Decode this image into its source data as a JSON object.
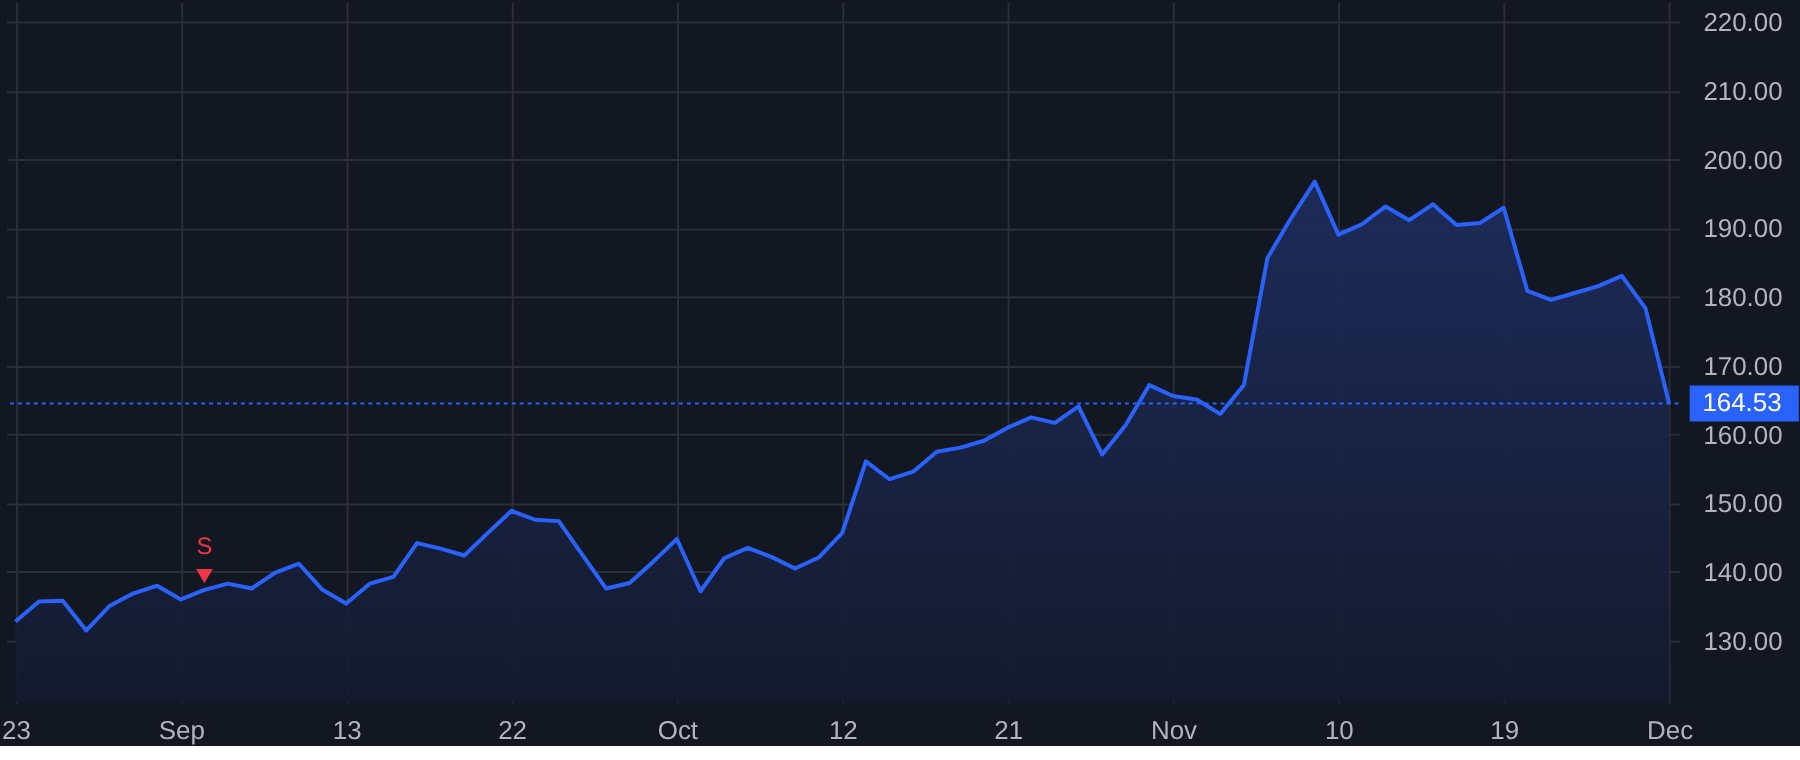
{
  "chart_data": {
    "type": "area",
    "categories": [
      "23",
      null,
      null,
      null,
      null,
      null,
      null,
      "Sep",
      null,
      null,
      null,
      null,
      null,
      null,
      "13",
      null,
      null,
      null,
      null,
      null,
      null,
      "22",
      null,
      null,
      null,
      null,
      null,
      null,
      "Oct",
      null,
      null,
      null,
      null,
      null,
      null,
      "12",
      null,
      null,
      null,
      null,
      null,
      null,
      "21",
      null,
      null,
      null,
      null,
      null,
      null,
      "Nov",
      null,
      null,
      null,
      null,
      null,
      null,
      "10",
      null,
      null,
      null,
      null,
      null,
      null,
      "19",
      null,
      null,
      null,
      null,
      null,
      null,
      "Dec"
    ],
    "series": [
      {
        "color": "#2962ff",
        "values": [
          132.8,
          135.7,
          135.8,
          131.5,
          135.1,
          136.9,
          138.0,
          136.0,
          137.4,
          138.3,
          137.6,
          139.9,
          141.2,
          137.4,
          135.4,
          138.3,
          139.3,
          144.2,
          143.4,
          142.4,
          145.7,
          148.9,
          147.6,
          147.4,
          142.5,
          137.6,
          138.4,
          141.5,
          144.8,
          137.2,
          142.0,
          143.5,
          142.2,
          140.5,
          142.1,
          145.7,
          156.1,
          153.5,
          154.6,
          157.5,
          158.1,
          159.1,
          161.0,
          162.5,
          161.7,
          164.1,
          157.1,
          161.4,
          167.2,
          165.6,
          165.1,
          163.0,
          167.2,
          185.7,
          191.5,
          196.8,
          189.1,
          190.6,
          193.2,
          191.2,
          193.5,
          190.5,
          190.8,
          193.0,
          180.9,
          179.6,
          180.6,
          181.6,
          183.1,
          178.4,
          164.53
        ]
      },
      {
        "name": "S",
        "type": "scatter",
        "marker": "triangle",
        "color": "#f23645",
        "values": [
          null,
          null,
          null,
          null,
          null,
          null,
          null,
          null,
          139.4,
          null,
          null,
          null,
          null,
          null,
          null,
          null,
          null,
          null,
          null,
          null,
          null,
          null,
          null,
          null,
          null,
          null,
          null,
          null,
          null,
          null,
          null,
          null,
          null,
          null,
          null,
          null,
          null,
          null,
          null,
          null,
          null,
          null,
          null,
          null,
          null,
          null,
          null,
          null,
          null,
          null,
          null,
          null,
          null,
          null,
          null,
          null,
          null,
          null,
          null,
          null,
          null,
          null,
          null,
          null,
          null,
          null,
          null,
          null,
          null,
          null,
          null
        ]
      }
    ],
    "ylim": [
      121,
      223
    ],
    "yticks": [
      {
        "value": 130,
        "label": "130.00"
      },
      {
        "value": 140,
        "label": "140.00"
      },
      {
        "value": 150,
        "label": "150.00"
      },
      {
        "value": 160,
        "label": "160.00"
      },
      {
        "value": 170,
        "label": "170.00"
      },
      {
        "value": 180,
        "label": "180.00"
      },
      {
        "value": 190,
        "label": "190.00"
      },
      {
        "value": 200,
        "label": "200.00"
      },
      {
        "value": 210,
        "label": "210.00"
      },
      {
        "value": 220,
        "label": "220.00"
      }
    ],
    "ref_lines": [
      {
        "axis": "y",
        "value": 164.53,
        "label": "164.53",
        "color": "#2962ff",
        "line_style": "dotted"
      }
    ],
    "grid": true
  }
}
